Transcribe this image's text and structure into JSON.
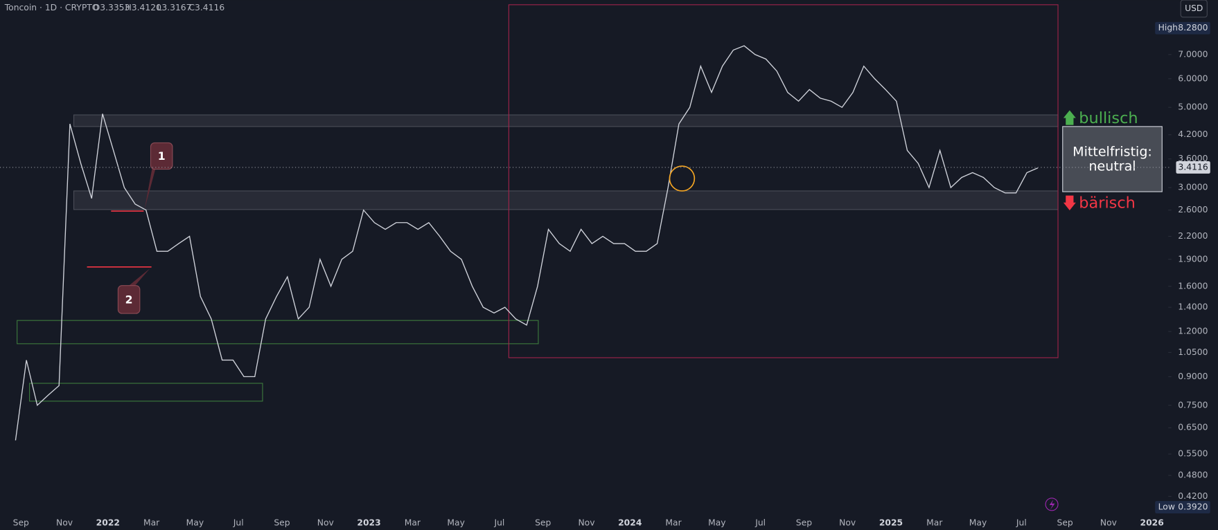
{
  "chart_data": {
    "type": "line",
    "title": "Toncoin · 1D · CRYPTO",
    "ohlc": [
      "O3.3353",
      "H3.4120",
      "L3.3167",
      "C3.4116"
    ],
    "currency": "USD",
    "log_scale": true,
    "color": "#d1d4dc",
    "values": [
      0.6,
      1.0,
      0.75,
      0.8,
      0.85,
      4.5,
      3.5,
      2.8,
      4.8,
      3.8,
      3.0,
      2.7,
      2.6,
      2.0,
      2.0,
      2.1,
      2.2,
      1.5,
      1.3,
      1.0,
      1.0,
      0.9,
      0.9,
      1.3,
      1.5,
      1.7,
      1.3,
      1.4,
      1.9,
      1.6,
      1.9,
      2.0,
      2.6,
      2.4,
      2.3,
      2.4,
      2.4,
      2.3,
      2.4,
      2.2,
      2.0,
      1.9,
      1.6,
      1.4,
      1.35,
      1.4,
      1.3,
      1.25,
      1.6,
      2.3,
      2.1,
      2.0,
      2.3,
      2.1,
      2.2,
      2.1,
      2.1,
      2.0,
      2.0,
      2.1,
      3.0,
      4.5,
      5.0,
      6.5,
      5.5,
      6.5,
      7.2,
      7.4,
      7.0,
      6.8,
      6.3,
      5.5,
      5.2,
      5.6,
      5.3,
      5.2,
      5.0,
      5.5,
      6.5,
      6.0,
      5.6,
      5.2,
      3.8,
      3.5,
      3.0,
      3.8,
      3.0,
      3.2,
      3.3,
      3.2,
      3.0,
      2.9,
      2.9,
      3.3,
      3.4
    ],
    "x_labels": [
      "Sep",
      "Nov",
      "2022",
      "Mar",
      "May",
      "Jul",
      "Sep",
      "Nov",
      "2023",
      "Mar",
      "May",
      "Jul",
      "Sep",
      "Nov",
      "2024",
      "Mar",
      "May",
      "Jul",
      "Sep",
      "Nov",
      "2025",
      "Mar",
      "May",
      "Jul",
      "Sep",
      "Nov",
      "2026"
    ],
    "ylim": [
      0.38,
      9.9
    ],
    "yticks": [
      {
        "value": 0.42,
        "label": "0.4200"
      },
      {
        "value": 0.48,
        "label": "0.4800"
      },
      {
        "value": 0.55,
        "label": "0.5500"
      },
      {
        "value": 0.65,
        "label": "0.6500"
      },
      {
        "value": 0.75,
        "label": "0.7500"
      },
      {
        "value": 0.9,
        "label": "0.9000"
      },
      {
        "value": 1.05,
        "label": "1.0500"
      },
      {
        "value": 1.2,
        "label": "1.2000"
      },
      {
        "value": 1.4,
        "label": "1.4000"
      },
      {
        "value": 1.6,
        "label": "1.6000"
      },
      {
        "value": 1.9,
        "label": "1.9000"
      },
      {
        "value": 2.2,
        "label": "2.2000"
      },
      {
        "value": 2.6,
        "label": "2.6000"
      },
      {
        "value": 3.0,
        "label": "3.0000"
      },
      {
        "value": 3.6,
        "label": "3.6000"
      },
      {
        "value": 4.2,
        "label": "4.2000"
      },
      {
        "value": 5.0,
        "label": "5.0000"
      },
      {
        "value": 6.0,
        "label": "6.0000"
      },
      {
        "value": 7.0,
        "label": "7.0000"
      }
    ],
    "last_price": 3.4116,
    "high": {
      "value": 8.28,
      "label": "8.2800"
    },
    "high_text": "High",
    "low": {
      "value": 0.392,
      "label": "0.3920"
    },
    "low_text": "Low",
    "annotations": {
      "bullish": "bullisch",
      "bearish": "bärisch",
      "outlook": [
        "Mittelfristig:",
        "neutral"
      ],
      "marker1": "1",
      "marker2": "2"
    }
  }
}
